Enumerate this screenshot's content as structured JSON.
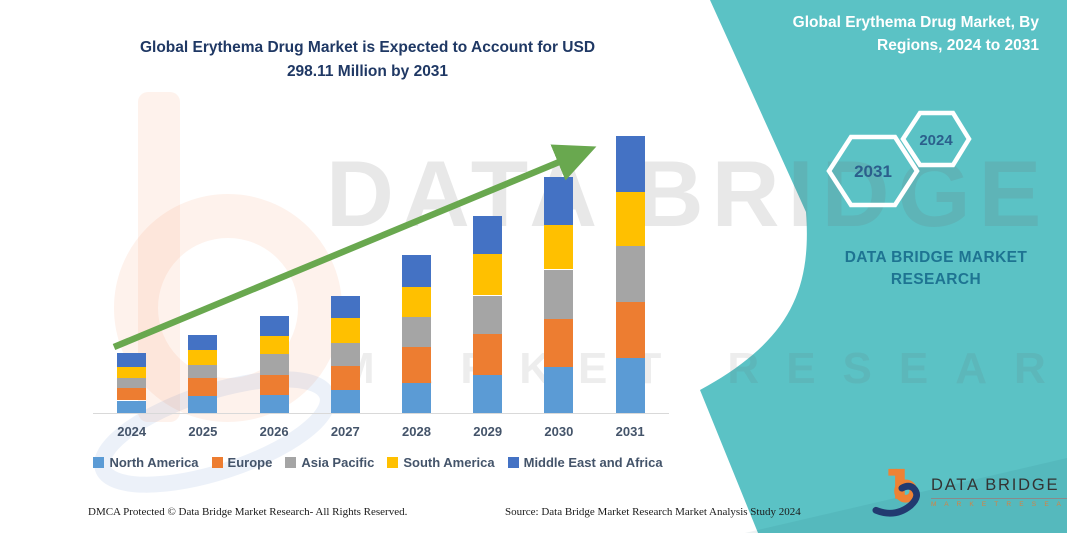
{
  "page": {
    "title_line1": "Global Erythema Drug Market is Expected to Account for USD",
    "title_line2": "298.11 Million by 2031"
  },
  "panel": {
    "heading_line1": "Global Erythema Drug Market, By",
    "heading_line2": "Regions, 2024 to 2031",
    "hexagons": [
      {
        "label": "2031"
      },
      {
        "label": "2024"
      }
    ],
    "brand_line1": "DATA BRIDGE MARKET",
    "brand_line2": "RESEARCH",
    "accent_teal": "#5BC2C5"
  },
  "watermark": {
    "line1": "DATA BRIDGE",
    "line2": "MARKET RESEARCH"
  },
  "chart_data": {
    "type": "bar",
    "stacked": true,
    "title": "Global Erythema Drug Market is Expected to Account for USD 298.11 Million by 2031",
    "unit": "USD Million",
    "categories": [
      "2024",
      "2025",
      "2026",
      "2027",
      "2028",
      "2029",
      "2030",
      "2031"
    ],
    "series": [
      {
        "name": "North America",
        "color": "#5B9BD5",
        "values": [
          13.5,
          18.0,
          19.5,
          25.0,
          32.5,
          40.5,
          49.5,
          58.8
        ]
      },
      {
        "name": "Europe",
        "color": "#ED7D31",
        "values": [
          13.2,
          19.5,
          21.5,
          26.0,
          38.5,
          45.0,
          52.0,
          60.2
        ]
      },
      {
        "name": "Asia Pacific",
        "color": "#A5A5A5",
        "values": [
          11.5,
          14.0,
          23.0,
          24.5,
          32.0,
          41.0,
          53.0,
          60.5
        ]
      },
      {
        "name": "South America",
        "color": "#FFC000",
        "values": [
          11.8,
          16.5,
          18.5,
          27.0,
          33.0,
          45.0,
          48.0,
          58.4
        ]
      },
      {
        "name": "Middle East and Africa",
        "color": "#4472C4",
        "values": [
          14.3,
          16.0,
          22.5,
          24.0,
          34.0,
          40.5,
          52.0,
          60.21
        ]
      }
    ],
    "totals": [
      64.3,
      84.0,
      105.0,
      126.5,
      170.0,
      212.0,
      254.5,
      298.11
    ],
    "xlabel": "",
    "ylabel": "",
    "ylim": [
      0,
      320
    ],
    "grid": false,
    "value_axis_visible": false,
    "legend_position": "bottom",
    "annotations": [
      "upward green growth trend arrow across bar tops"
    ],
    "arrow_color": "#69A84F"
  },
  "footer": {
    "left": "DMCA Protected © Data Bridge Market Research-  All Rights Reserved.",
    "source": "Source: Data Bridge Market Research  Market Analysis Study 2024"
  },
  "logo": {
    "name_text": "DATA BRIDGE",
    "sub_text": "M A R K E T   R E S E A R C H"
  }
}
